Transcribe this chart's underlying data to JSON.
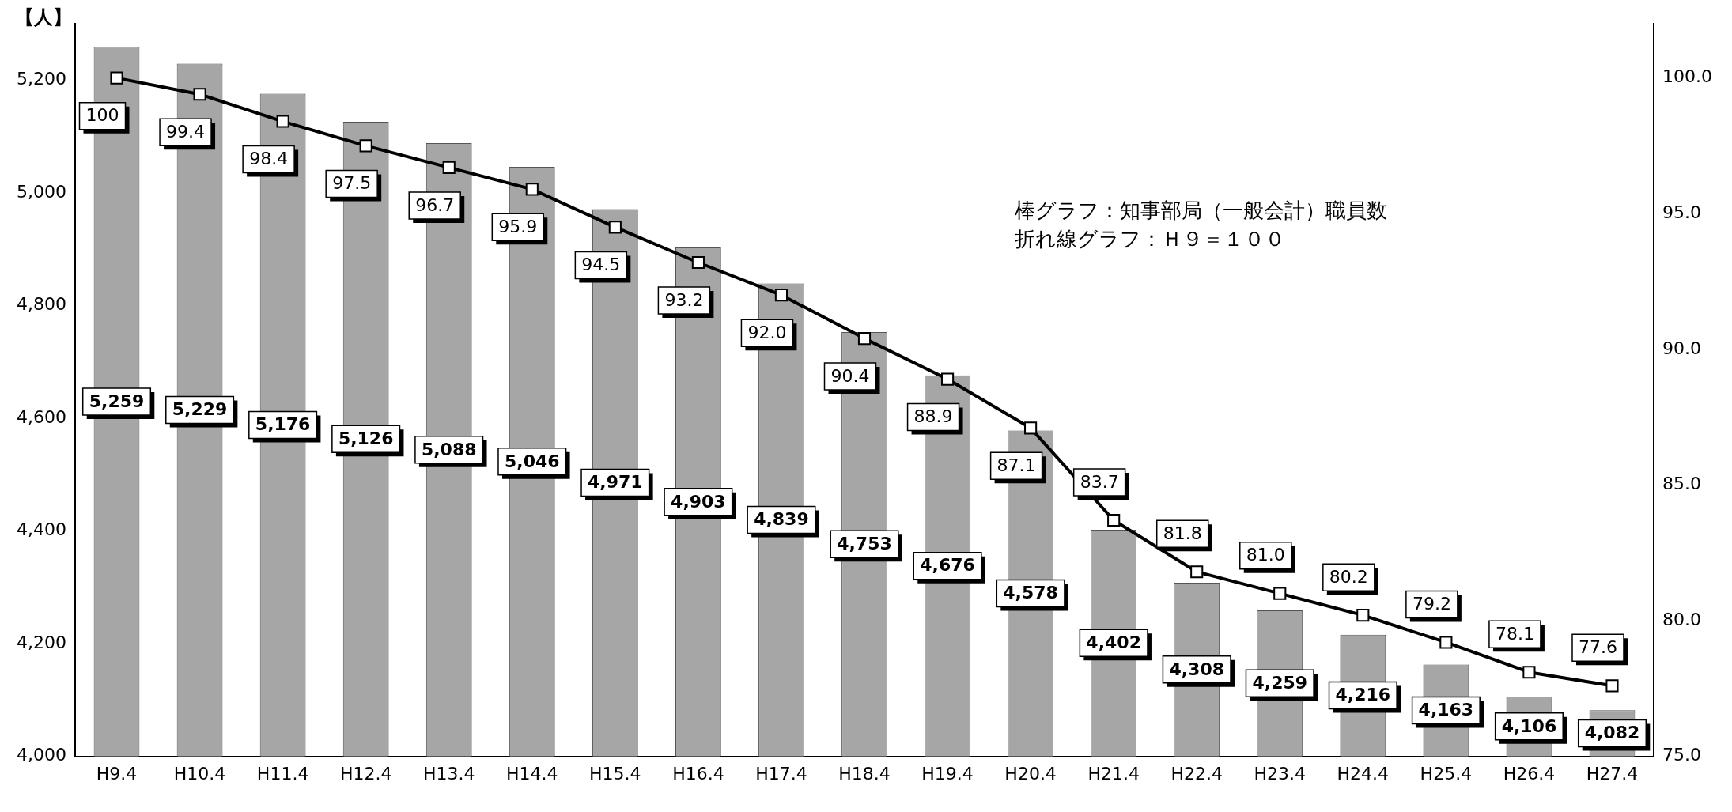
{
  "chart_data": {
    "type": "bar",
    "ylabel": "【人】",
    "categories": [
      "H9.4",
      "H10.4",
      "H11.4",
      "H12.4",
      "H13.4",
      "H14.4",
      "H15.4",
      "H16.4",
      "H17.4",
      "H18.4",
      "H19.4",
      "H20.4",
      "H21.4",
      "H22.4",
      "H23.4",
      "H24.4",
      "H25.4",
      "H26.4",
      "H27.4"
    ],
    "series": [
      {
        "color": "#a6a6a6",
        "values": [
          5259,
          5229,
          5176,
          5126,
          5088,
          5046,
          4971,
          4903,
          4839,
          4753,
          4676,
          4578,
          4402,
          4308,
          4259,
          4216,
          4163,
          4106,
          4082
        ],
        "value_labels": [
          "5,259",
          "5,229",
          "5,176",
          "5,126",
          "5,088",
          "5,046",
          "4,971",
          "4,903",
          "4,839",
          "4,753",
          "4,676",
          "4,578",
          "4,402",
          "4,308",
          "4,259",
          "4,216",
          "4,163",
          "4,106",
          "4,082"
        ]
      },
      {
        "type": "line",
        "axis": "y2",
        "color": "#000000",
        "marker": "square",
        "values": [
          100,
          99.4,
          98.4,
          97.5,
          96.7,
          95.9,
          94.5,
          93.2,
          92.0,
          90.4,
          88.9,
          87.1,
          83.7,
          81.8,
          81.0,
          80.2,
          79.2,
          78.1,
          77.6
        ],
        "value_labels": [
          "100",
          "99.4",
          "98.4",
          "97.5",
          "96.7",
          "95.9",
          "94.5",
          "93.2",
          "92.0",
          "90.4",
          "88.9",
          "87.1",
          "83.7",
          "81.8",
          "81.0",
          "80.2",
          "79.2",
          "78.1",
          "77.6"
        ]
      }
    ],
    "ylim": [
      4000,
      5300
    ],
    "yticks": [
      {
        "value": 4000,
        "label": "4,000"
      },
      {
        "value": 4200,
        "label": "4,200"
      },
      {
        "value": 4400,
        "label": "4,400"
      },
      {
        "value": 4600,
        "label": "4,600"
      },
      {
        "value": 4800,
        "label": "4,800"
      },
      {
        "value": 5000,
        "label": "5,000"
      },
      {
        "value": 5200,
        "label": "5,200"
      }
    ],
    "y2lim": [
      75,
      102
    ],
    "y2ticks": [
      {
        "value": 75,
        "label": "75.0"
      },
      {
        "value": 80,
        "label": "80.0"
      },
      {
        "value": 85,
        "label": "85.0"
      },
      {
        "value": 90,
        "label": "90.0"
      },
      {
        "value": 95,
        "label": "95.0"
      },
      {
        "value": 100,
        "label": "100.0"
      }
    ],
    "annotations": [
      "棒グラフ：知事部局（一般会計）職員数",
      "折れ線グラフ：Ｈ９＝１００"
    ],
    "grid": false,
    "legend": false
  }
}
